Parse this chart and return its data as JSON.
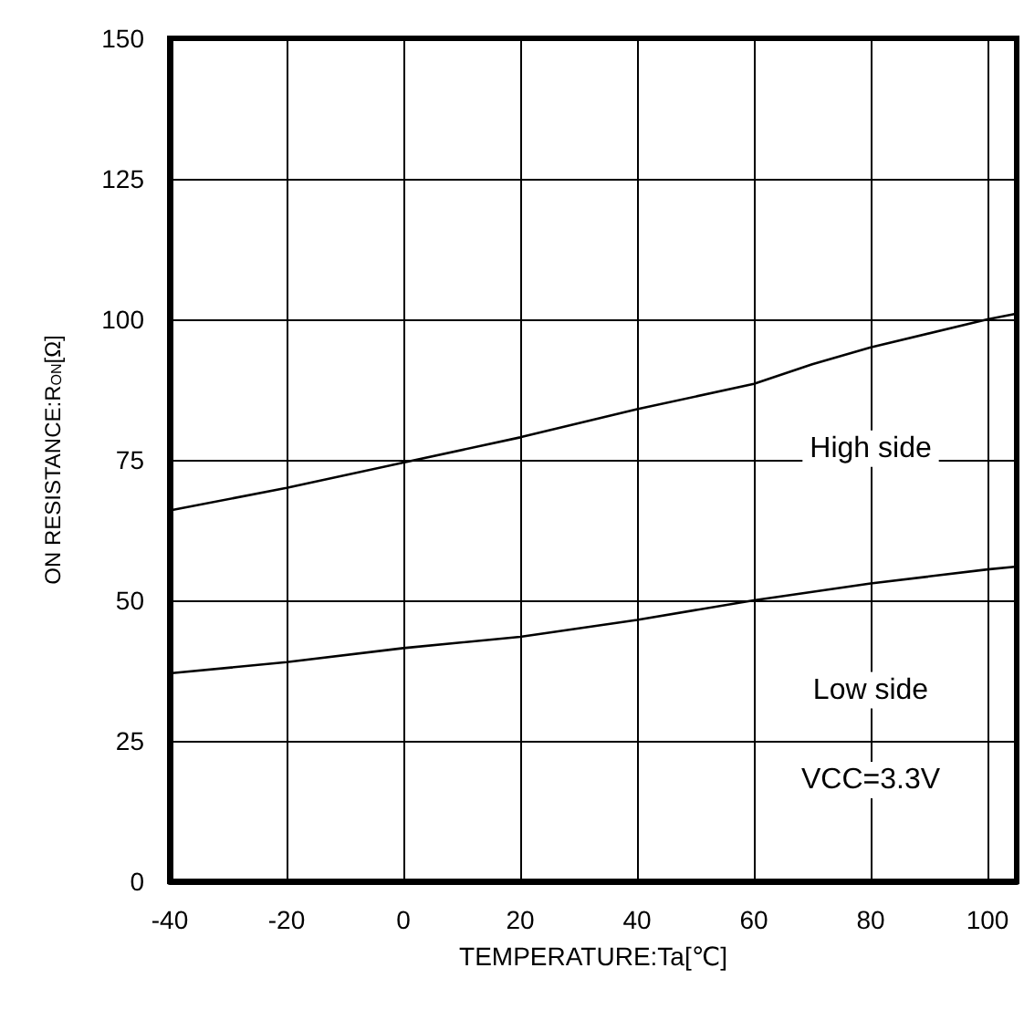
{
  "chart_data": {
    "type": "line",
    "xlabel": "TEMPERATURE:Ta[℃]",
    "ylabel": "ON RESISTANCE:R$_{ON}$[Ω]",
    "x": [
      -40,
      -20,
      0,
      20,
      40,
      60,
      70,
      80,
      100,
      105
    ],
    "series": [
      {
        "color": "#000000",
        "values": [
          66,
          70,
          74.5,
          79,
          84,
          88.5,
          92,
          95,
          100,
          101
        ]
      },
      {
        "color": "#000000",
        "values": [
          37,
          39,
          41.5,
          43.5,
          46.5,
          50,
          51.5,
          53,
          55.5,
          56
        ]
      }
    ],
    "annotations": [
      "High side",
      "Low side",
      "VCC=3.3V"
    ],
    "xlim": [
      -40,
      105
    ],
    "xticks": [
      -40,
      -20,
      0,
      20,
      40,
      60,
      80,
      100
    ],
    "ylim": [
      0,
      150
    ],
    "yticks": [
      0,
      25,
      50,
      75,
      100,
      125,
      150
    ],
    "grid": true,
    "marker": "none",
    "line_style": "solid"
  }
}
